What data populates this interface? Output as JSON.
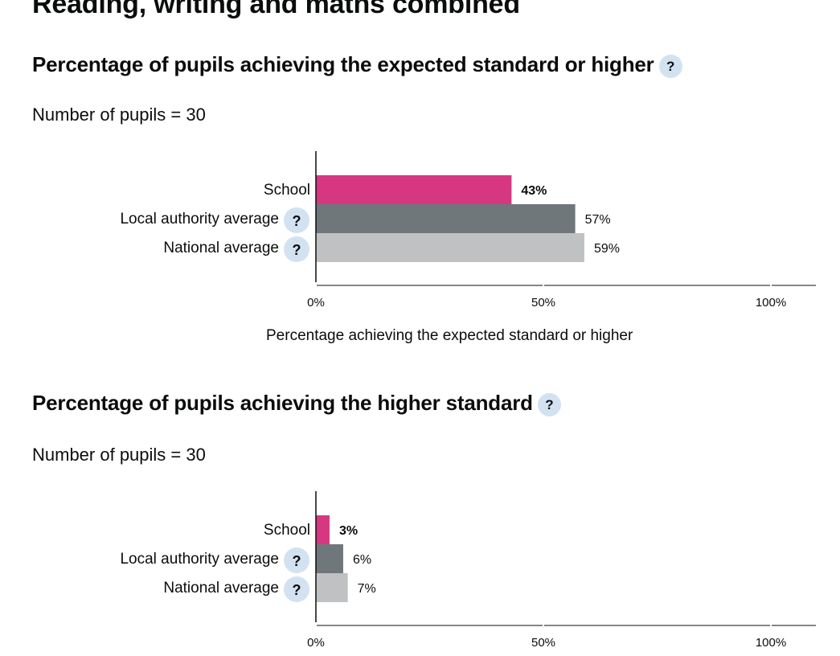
{
  "page": {
    "heading": "Reading, writing and maths combined"
  },
  "sections": [
    {
      "title": "Percentage of pupils achieving the expected standard or higher",
      "help": "?",
      "pupil_count": "Number of pupils = 30",
      "axis_title": "Percentage achieving the expected standard or higher"
    },
    {
      "title": "Percentage of pupils achieving the higher standard",
      "help": "?",
      "pupil_count": "Number of pupils = 30",
      "axis_title": ""
    }
  ],
  "chart_data": [
    {
      "type": "bar",
      "orientation": "horizontal",
      "categories": [
        "School",
        "Local authority average",
        "National average"
      ],
      "category_help": [
        false,
        true,
        true
      ],
      "values": [
        43,
        57,
        59
      ],
      "value_labels": [
        "43%",
        "57%",
        "59%"
      ],
      "bold_labels": [
        true,
        false,
        false
      ],
      "colors": [
        "#d53880",
        "#6f777b",
        "#bfc1c3"
      ],
      "xlim": [
        0,
        100
      ],
      "xticks": [
        0,
        50,
        100
      ],
      "xtick_labels": [
        "0%",
        "50%",
        "100%"
      ],
      "xlabel": "Percentage achieving the expected standard or higher",
      "grid": false
    },
    {
      "type": "bar",
      "orientation": "horizontal",
      "categories": [
        "School",
        "Local authority average",
        "National average"
      ],
      "category_help": [
        false,
        true,
        true
      ],
      "values": [
        3,
        6,
        7
      ],
      "value_labels": [
        "3%",
        "6%",
        "7%"
      ],
      "bold_labels": [
        true,
        false,
        false
      ],
      "colors": [
        "#d53880",
        "#6f777b",
        "#bfc1c3"
      ],
      "xlim": [
        0,
        100
      ],
      "xticks": [
        0,
        50,
        100
      ],
      "xtick_labels": [
        "0%",
        "50%",
        "100%"
      ],
      "xlabel": "",
      "grid": false
    }
  ]
}
